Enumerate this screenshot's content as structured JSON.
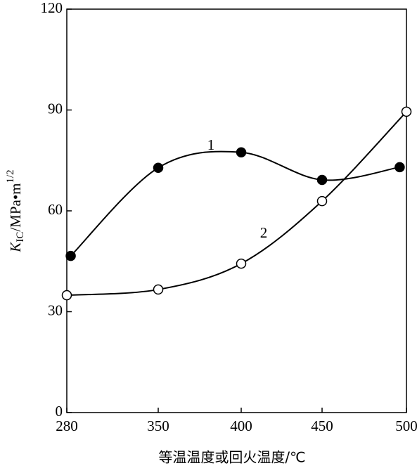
{
  "chart_data": {
    "type": "line",
    "x_label": "等温温度或回火温度/℃",
    "y_label": [
      "K",
      "IC",
      "/MPa•m",
      "1/2"
    ],
    "xlim": [
      280,
      500
    ],
    "xticks": [
      280,
      350,
      400,
      450,
      500
    ],
    "ylim": [
      0,
      120
    ],
    "yticks": [
      0,
      30,
      60,
      90,
      120
    ],
    "grid": false,
    "series": [
      {
        "name": "1",
        "color": "#000000",
        "marker": "filled",
        "x": [
          283,
          350,
          400,
          450,
          496
        ],
        "values": [
          46.6,
          72.8,
          77.4,
          69.2,
          73
        ]
      },
      {
        "name": "2",
        "color": "#000000",
        "marker": "open",
        "x": [
          280,
          350,
          400,
          450,
          500
        ],
        "values": [
          34.9,
          36.6,
          44.3,
          62.9,
          89.5
        ]
      }
    ]
  }
}
